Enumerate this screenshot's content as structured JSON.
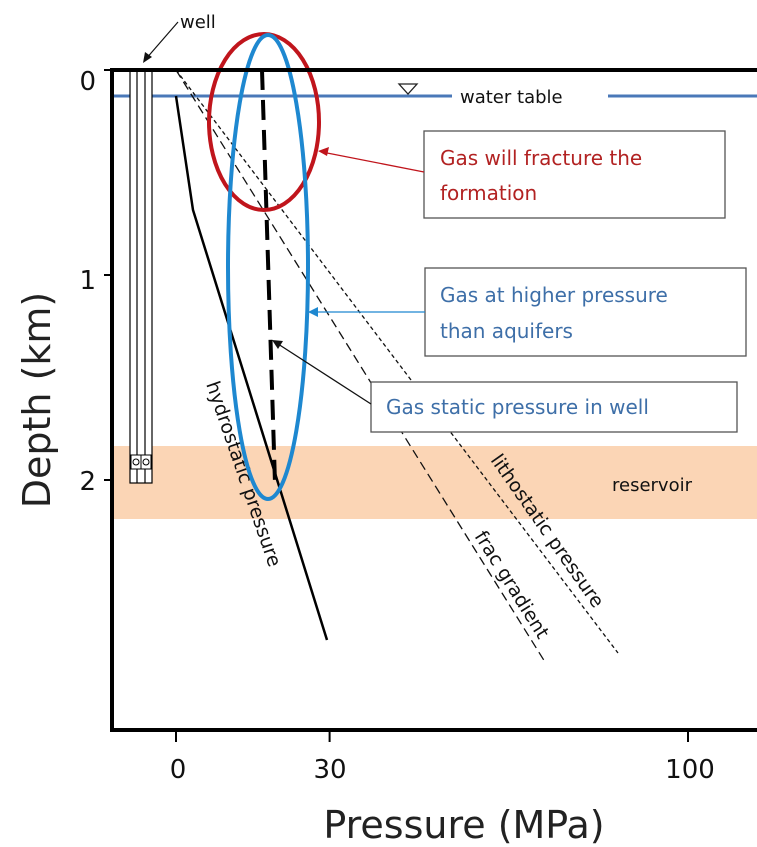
{
  "chart_data": {
    "type": "line",
    "xlabel": "Pressure (MPa)",
    "ylabel": "Depth (km)",
    "x_ticks": [
      "0",
      "30",
      "100"
    ],
    "y_ticks": [
      "0",
      "1",
      "2"
    ],
    "xlim": [
      -15,
      122
    ],
    "ylim": [
      3.3,
      0
    ],
    "series": [
      {
        "name": "hydrostatic pressure",
        "x": [
          0,
          4,
          29
        ],
        "y": [
          0.1,
          0.65,
          2.8
        ]
      },
      {
        "name": "frac gradient",
        "x": [
          0,
          86
        ],
        "y": [
          0,
          2.85
        ]
      },
      {
        "name": "lithostatic pressure",
        "x": [
          0,
          104
        ],
        "y": [
          0,
          2.85
        ]
      },
      {
        "name": "Gas static pressure in well",
        "x": [
          21,
          23
        ],
        "y": [
          0,
          2.05
        ]
      }
    ],
    "regions": [
      {
        "name": "reservoir",
        "y_range": [
          1.82,
          2.18
        ],
        "color": "#fbd5b5"
      }
    ],
    "water_table_depth": 0.1,
    "well": {
      "x_range": [
        -13,
        -6
      ],
      "depth": 2.0,
      "color": "#000000"
    }
  },
  "labels": {
    "well": "well",
    "water_table": "water table",
    "reservoir": "reservoir",
    "hydrostatic": "hydrostatic pressure",
    "frac": "frac gradient",
    "litho": "lithostatic pressure"
  },
  "callouts": {
    "fracture_line1": "Gas will fracture the",
    "fracture_line2": "formation",
    "higher_line1": "Gas at higher pressure",
    "higher_line2": "than aquifers",
    "static": "Gas static pressure in well"
  },
  "colors": {
    "red": "#b22222",
    "blue": "#3e6fa8",
    "ellipse_red": "#c0151c",
    "ellipse_blue": "#1e88d0",
    "water": "#4a78b8"
  }
}
